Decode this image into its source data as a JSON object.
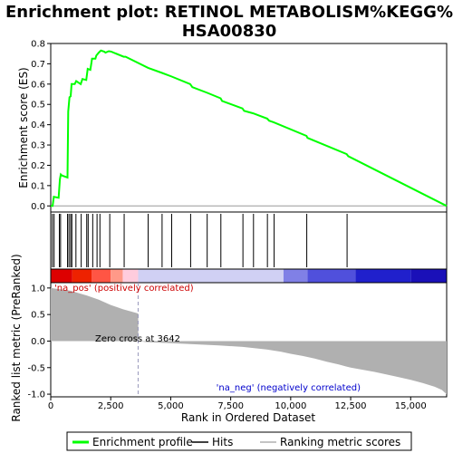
{
  "chart_data": {
    "type": "line",
    "title_line1": "Enrichment plot: RETINOL METABOLISM%KEGG%",
    "title_line2": "HSA00830",
    "xlabel": "Rank in Ordered Dataset",
    "es_ylabel": "Enrichment score (ES)",
    "metric_ylabel": "Ranked list metric (PreRanked)",
    "xlim": [
      0,
      16500
    ],
    "es_ylim": [
      -0.03,
      0.8
    ],
    "metric_ylim": [
      -1.05,
      1.1
    ],
    "x_ticks": [
      0,
      2500,
      5000,
      7500,
      10000,
      12500,
      15000
    ],
    "x_tick_labels": [
      "0",
      "2,500",
      "5,000",
      "7,500",
      "10,000",
      "12,500",
      "15,000"
    ],
    "es_ticks": [
      0.0,
      0.1,
      0.2,
      0.3,
      0.4,
      0.5,
      0.6,
      0.7,
      0.8
    ],
    "es_tick_labels": [
      "0.0",
      "0.1",
      "0.2",
      "0.3",
      "0.4",
      "0.5",
      "0.6",
      "0.7",
      "0.8"
    ],
    "metric_ticks": [
      1.0,
      0.5,
      0.0,
      -0.5,
      -1.0
    ],
    "metric_tick_labels": [
      "1.0",
      "0.5",
      "0.0",
      "-0.5",
      "-1.0"
    ],
    "enrichment_profile": {
      "color": "#00ff00",
      "x": [
        0,
        80,
        130,
        330,
        380,
        420,
        470,
        700,
        730,
        780,
        830,
        870,
        1000,
        1060,
        1250,
        1320,
        1480,
        1540,
        1650,
        1720,
        1860,
        1900,
        2000,
        2090,
        2230,
        2280,
        2420,
        2520,
        3040,
        3120,
        4060,
        4640,
        5040,
        5810,
        5900,
        6530,
        7080,
        7140,
        7990,
        8060,
        8440,
        9020,
        9100,
        9290,
        10660,
        10700,
        12330,
        12400,
        16500
      ],
      "y": [
        0.0,
        0.0,
        0.045,
        0.04,
        0.13,
        0.155,
        0.15,
        0.14,
        0.465,
        0.535,
        0.54,
        0.6,
        0.6,
        0.615,
        0.6,
        0.625,
        0.62,
        0.675,
        0.67,
        0.725,
        0.725,
        0.74,
        0.755,
        0.765,
        0.76,
        0.755,
        0.762,
        0.76,
        0.735,
        0.735,
        0.68,
        0.655,
        0.637,
        0.6,
        0.585,
        0.557,
        0.53,
        0.517,
        0.48,
        0.468,
        0.456,
        0.43,
        0.42,
        0.412,
        0.345,
        0.335,
        0.255,
        0.245,
        0.0
      ]
    },
    "hits": [
      70,
      140,
      360,
      410,
      700,
      760,
      830,
      880,
      1050,
      1270,
      1500,
      1560,
      1750,
      1930,
      2050,
      2460,
      3060,
      4060,
      4640,
      5040,
      5830,
      6520,
      7090,
      8010,
      8450,
      9030,
      9310,
      10670,
      12350
    ],
    "heatmap_segments": [
      {
        "x0": 0,
        "x1": 900,
        "color": "#dd0000"
      },
      {
        "x0": 900,
        "x1": 1700,
        "color": "#ee2200"
      },
      {
        "x0": 1700,
        "x1": 2500,
        "color": "#ff5544"
      },
      {
        "x0": 2500,
        "x1": 3000,
        "color": "#ff9988"
      },
      {
        "x0": 3000,
        "x1": 3642,
        "color": "#ffccdd"
      },
      {
        "x0": 3642,
        "x1": 9700,
        "color": "#d0d0f4"
      },
      {
        "x0": 9700,
        "x1": 10700,
        "color": "#8080e6"
      },
      {
        "x0": 10700,
        "x1": 12700,
        "color": "#5050dc"
      },
      {
        "x0": 12700,
        "x1": 15000,
        "color": "#2020cc"
      },
      {
        "x0": 15000,
        "x1": 16500,
        "color": "#1a10b8"
      }
    ],
    "ranked_metric": {
      "color": "#b0b0b0",
      "x": [
        0,
        800,
        1500,
        2000,
        2500,
        3000,
        3642,
        3650,
        4000,
        5000,
        6000,
        7000,
        8000,
        9000,
        9600,
        10000,
        10500,
        11000,
        11500,
        12000,
        12500,
        13000,
        13500,
        14000,
        14500,
        15000,
        15500,
        16000,
        16300,
        16500
      ],
      "y": [
        1.0,
        0.95,
        0.86,
        0.78,
        0.68,
        0.6,
        0.52,
        0.0,
        -0.02,
        -0.04,
        -0.06,
        -0.08,
        -0.11,
        -0.16,
        -0.2,
        -0.24,
        -0.28,
        -0.33,
        -0.39,
        -0.44,
        -0.5,
        -0.54,
        -0.58,
        -0.63,
        -0.68,
        -0.73,
        -0.79,
        -0.86,
        -0.92,
        -1.0
      ]
    },
    "zero_cross_label": "Zero cross at 3642",
    "zero_cross_x": 3642,
    "pos_label": "'na_pos' (positively correlated)",
    "pos_color": "#cc0000",
    "neg_label": "'na_neg' (negatively correlated)",
    "neg_color": "#0000cc",
    "legend": [
      {
        "label": "Enrichment profile",
        "kind": "line",
        "color": "#00ff00"
      },
      {
        "label": "Hits",
        "kind": "line",
        "color": "#000000"
      },
      {
        "label": "Ranking metric scores",
        "kind": "line",
        "color": "#b0b0b0"
      }
    ]
  }
}
